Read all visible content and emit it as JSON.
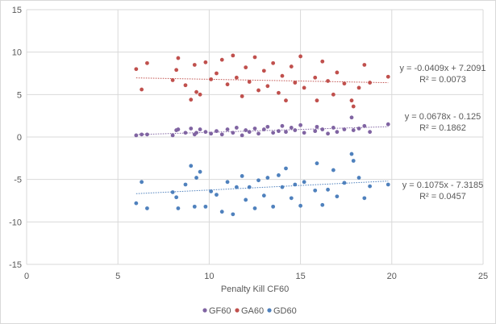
{
  "chart_data": {
    "type": "scatter",
    "title": "",
    "xlabel": "Penalty Kill CF60",
    "ylabel": "",
    "xlim": [
      0,
      25
    ],
    "ylim": [
      -15,
      15
    ],
    "xticks": [
      "0",
      "5",
      "10",
      "15",
      "20",
      "25"
    ],
    "yticks": [
      "15",
      "10",
      "5",
      "0",
      "-5",
      "-10",
      "-15"
    ],
    "grid": true,
    "legend": "bottom",
    "x": [
      6.0,
      6.3,
      6.6,
      8.0,
      8.2,
      8.3,
      8.7,
      9.0,
      9.2,
      9.3,
      9.5,
      9.8,
      10.1,
      10.4,
      10.7,
      11.0,
      11.3,
      11.5,
      11.8,
      12.0,
      12.2,
      12.5,
      12.7,
      13.0,
      13.2,
      13.5,
      13.8,
      14.0,
      14.2,
      14.5,
      14.7,
      15.0,
      15.2,
      15.9,
      15.8,
      16.2,
      16.5,
      16.8,
      17.0,
      17.4,
      17.8,
      17.9,
      18.2,
      18.5,
      18.8,
      19.8
    ],
    "series": [
      {
        "name": "GF60",
        "color": "#8064A2",
        "values": [
          0.2,
          0.3,
          0.3,
          0.2,
          0.8,
          0.9,
          0.5,
          1.0,
          0.3,
          0.5,
          0.9,
          0.6,
          0.4,
          0.7,
          0.3,
          0.9,
          0.5,
          1.1,
          0.2,
          0.8,
          0.6,
          1.0,
          0.4,
          0.9,
          1.2,
          0.5,
          0.7,
          1.3,
          0.6,
          1.1,
          0.8,
          1.4,
          0.5,
          1.2,
          0.7,
          0.9,
          0.4,
          1.1,
          0.6,
          0.9,
          2.3,
          0.8,
          1.0,
          1.3,
          0.6,
          1.5
        ],
        "trendline": {
          "slope": 0.0678,
          "intercept": -0.125,
          "equation": "y = 0.0678x - 0.125",
          "r2": "R² = 0.1862"
        }
      },
      {
        "name": "GA60",
        "color": "#C0504D",
        "values": [
          8.0,
          5.6,
          8.7,
          6.7,
          7.9,
          9.3,
          6.1,
          4.4,
          8.5,
          5.3,
          5.0,
          8.8,
          6.8,
          7.5,
          9.1,
          6.2,
          9.6,
          7.0,
          4.8,
          8.2,
          6.5,
          9.4,
          5.5,
          7.8,
          6.0,
          8.7,
          5.2,
          7.2,
          4.3,
          8.3,
          6.4,
          9.5,
          5.8,
          4.3,
          7.0,
          8.9,
          6.6,
          5.0,
          7.6,
          6.3,
          4.3,
          3.6,
          5.8,
          8.5,
          6.4,
          7.1
        ],
        "trendline": {
          "slope": -0.0409,
          "intercept": 7.2091,
          "equation": "y = -0.0409x + 7.2091",
          "r2": "R² = 0.0073"
        }
      },
      {
        "name": "GD60",
        "color": "#4F81BD",
        "values": [
          -7.8,
          -5.3,
          -8.4,
          -6.5,
          -7.1,
          -8.4,
          -5.6,
          -3.4,
          -8.2,
          -4.8,
          -4.1,
          -8.2,
          -6.4,
          -6.8,
          -8.8,
          -5.3,
          -9.1,
          -5.9,
          -4.6,
          -7.4,
          -5.9,
          -8.4,
          -5.1,
          -6.9,
          -4.8,
          -8.2,
          -4.5,
          -5.9,
          -3.7,
          -7.2,
          -5.6,
          -8.1,
          -5.3,
          -3.1,
          -6.3,
          -8.0,
          -6.2,
          -3.9,
          -7.0,
          -5.4,
          -2.0,
          -2.8,
          -4.8,
          -7.2,
          -5.8,
          -5.6
        ],
        "trendline": {
          "slope": 0.1075,
          "intercept": -7.3185,
          "equation": "y = 0.1075x - 7.3185",
          "r2": "R² = 0.0457"
        }
      }
    ]
  }
}
